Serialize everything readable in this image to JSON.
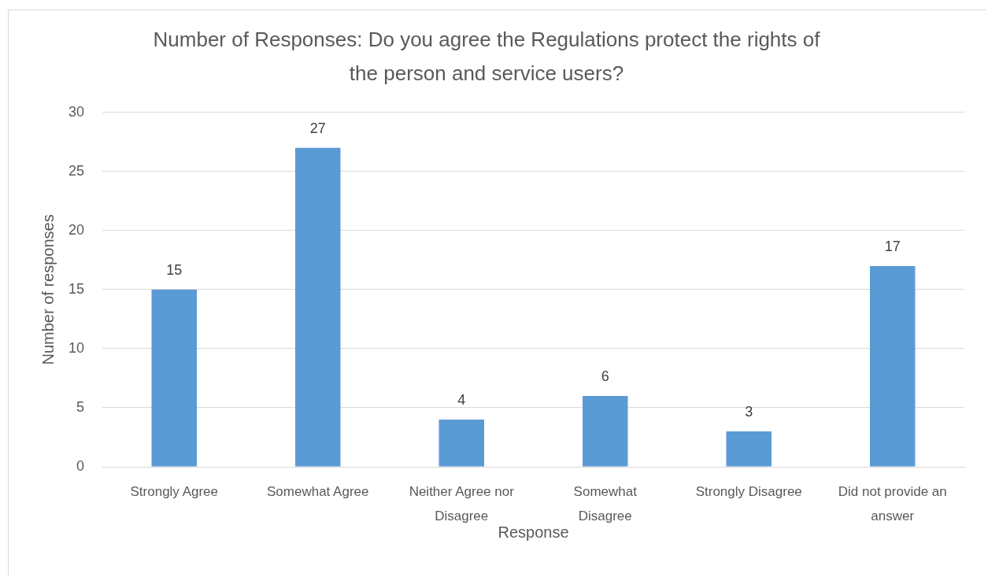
{
  "chart_data": {
    "type": "bar",
    "title": "Number of Responses: Do you agree the Regulations protect the rights of the person and service users?",
    "xlabel": "Response",
    "ylabel": "Number of responses",
    "categories": [
      "Strongly Agree",
      "Somewhat Agree",
      "Neither Agree nor Disagree",
      "Somewhat Disagree",
      "Strongly Disagree",
      "Did not provide an answer"
    ],
    "values": [
      15,
      27,
      4,
      6,
      3,
      17
    ],
    "color": "#5b9bd5",
    "ylim": [
      0,
      30
    ],
    "yticks": [
      0,
      5,
      10,
      15,
      20,
      25,
      30
    ],
    "grid": "y",
    "data_labels": true
  }
}
